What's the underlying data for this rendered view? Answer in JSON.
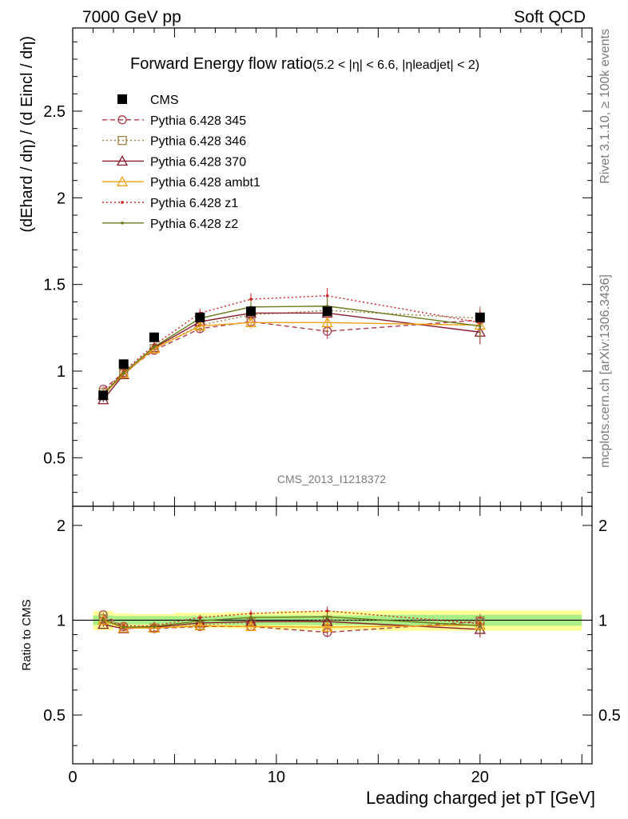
{
  "header": {
    "left": "7000 GeV pp",
    "right": "Soft QCD"
  },
  "side": {
    "top": "Rivet 3.1.10, ≥ 100k events",
    "bottom": "mcplots.cern.ch [arXiv:1306.3436]"
  },
  "chart_data": {
    "type": "line",
    "title": "Forward Energy flow ratio",
    "title_cut": "(5.2 < |η| < 6.6, |ηleadjet| < 2)",
    "watermark": "CMS_2013_I1218372",
    "xlabel": "Leading charged jet pT [GeV]",
    "ylabel": "(dEhard / dη) / (d Eincl / dη)",
    "ratio_ylabel": "Ratio to CMS",
    "xlim": [
      0,
      25.5
    ],
    "ylim": [
      0.22,
      2.98
    ],
    "ratio_ylim": [
      0.35,
      2.3
    ],
    "x_ticks": [
      0,
      10,
      20
    ],
    "y_ticks": [
      0.5,
      1,
      1.5,
      2,
      2.5
    ],
    "ratio_ticks": [
      0.5,
      1,
      2
    ],
    "legend_position": "top-left",
    "x": [
      1.5,
      2.5,
      4.0,
      6.25,
      8.75,
      12.5,
      20.0
    ],
    "xerr": [
      [
        1.0,
        2.0
      ],
      [
        2.0,
        3.0
      ],
      [
        3.0,
        5.0
      ],
      [
        5.0,
        7.5
      ],
      [
        7.5,
        10.0
      ],
      [
        10.0,
        15.0
      ],
      [
        15.0,
        25.0
      ]
    ],
    "series": [
      {
        "name": "CMS",
        "color": "#000000",
        "marker": "square-filled",
        "dash": "none",
        "values": [
          0.86,
          1.04,
          1.195,
          1.31,
          1.345,
          1.345,
          1.31
        ]
      },
      {
        "name": "Pythia 6.428 345",
        "color": "#b03a4a",
        "marker": "circle-open",
        "dash": "dashed",
        "values": [
          0.895,
          0.99,
          1.12,
          1.245,
          1.285,
          1.23,
          1.295
        ],
        "errors": [
          0.015,
          0.015,
          0.02,
          0.025,
          0.035,
          0.045,
          0.07
        ],
        "ratio": [
          1.04,
          0.955,
          0.94,
          0.955,
          0.955,
          0.915,
          0.99
        ]
      },
      {
        "name": "Pythia 6.428 346",
        "color": "#a08040",
        "marker": "square-open",
        "dash": "dotted",
        "values": [
          0.875,
          0.985,
          1.13,
          1.265,
          1.325,
          1.35,
          1.305
        ],
        "errors": [
          0.015,
          0.015,
          0.02,
          0.025,
          0.035,
          0.045,
          0.07
        ],
        "ratio": [
          1.01,
          0.945,
          0.945,
          0.965,
          0.985,
          1.0,
          0.995
        ]
      },
      {
        "name": "Pythia 6.428 370",
        "color": "#8b1c2a",
        "marker": "triangle-open",
        "dash": "solid",
        "values": [
          0.835,
          0.98,
          1.135,
          1.285,
          1.335,
          1.335,
          1.225
        ],
        "errors": [
          0.015,
          0.015,
          0.02,
          0.025,
          0.035,
          0.045,
          0.07
        ],
        "ratio": [
          0.97,
          0.94,
          0.95,
          0.98,
          0.99,
          0.99,
          0.935
        ]
      },
      {
        "name": "Pythia 6.428 ambt1",
        "color": "#f0a010",
        "marker": "triangle-open",
        "dash": "solid",
        "values": [
          0.86,
          0.985,
          1.13,
          1.26,
          1.28,
          1.28,
          1.265
        ],
        "errors": [
          0.015,
          0.015,
          0.02,
          0.025,
          0.035,
          0.045,
          0.07
        ],
        "ratio": [
          1.0,
          0.945,
          0.945,
          0.96,
          0.955,
          0.95,
          0.965
        ]
      },
      {
        "name": "Pythia 6.428 z1",
        "color": "#d02020",
        "marker": "dot",
        "dash": "dotted",
        "values": [
          0.87,
          1.0,
          1.15,
          1.335,
          1.415,
          1.435,
          1.28
        ],
        "errors": [
          0.015,
          0.015,
          0.02,
          0.025,
          0.035,
          0.045,
          0.07
        ],
        "ratio": [
          1.01,
          0.96,
          0.96,
          1.02,
          1.05,
          1.07,
          0.975
        ]
      },
      {
        "name": "Pythia 6.428 z2",
        "color": "#6b7a1a",
        "marker": "dot",
        "dash": "solid",
        "values": [
          0.865,
          0.99,
          1.14,
          1.305,
          1.37,
          1.375,
          1.26
        ],
        "errors": [
          0.015,
          0.015,
          0.02,
          0.025,
          0.035,
          0.045,
          0.07
        ],
        "ratio": [
          1.005,
          0.95,
          0.955,
          0.995,
          1.02,
          1.025,
          0.96
        ]
      }
    ],
    "ratio_bands": [
      {
        "color": "#ffff99",
        "halfwidth": [
          0.07,
          0.05,
          0.045,
          0.055,
          0.06,
          0.07,
          0.075
        ]
      },
      {
        "color": "#aaee88",
        "halfwidth": [
          0.035,
          0.03,
          0.03,
          0.03,
          0.035,
          0.035,
          0.04
        ]
      }
    ]
  }
}
